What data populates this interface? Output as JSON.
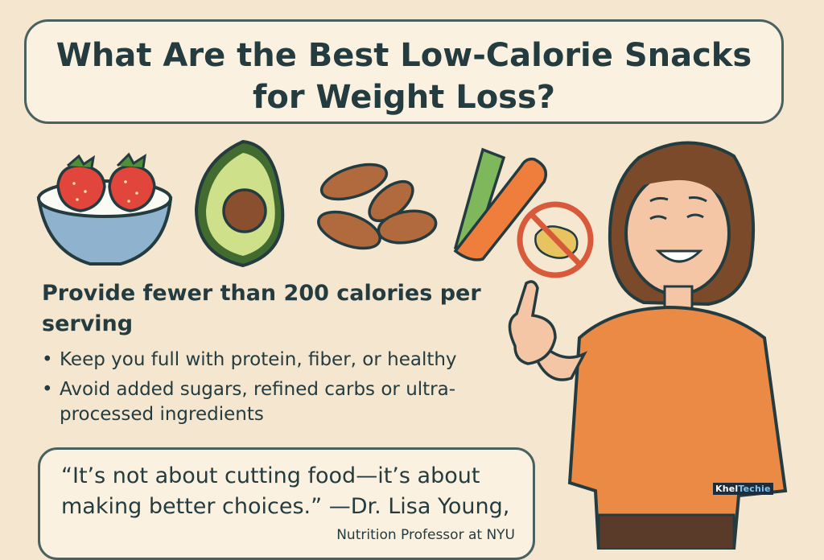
{
  "title": "What Are the Best Low-Calorie Snacks for Weight Loss?",
  "headline": "Provide fewer than 200 calories per serving",
  "bullets": [
    {
      "marker": "•",
      "text": "Keep you full with protein, fiber, or healthy"
    },
    {
      "marker": "•",
      "text": "Avoid added sugars, refined carbs or ultra-processed ingredients"
    }
  ],
  "quote": {
    "text": "“It’s not about cutting food—it’s about making better choices.” —Dr. Lisa Young,",
    "attribution": "Nutrition Professor at NYU"
  },
  "watermark": {
    "main": "Khel",
    "accent": "Techie"
  },
  "icons": [
    "strawberry-yogurt-bowl-icon",
    "avocado-icon",
    "almonds-icon",
    "celery-carrot-sticks-icon",
    "no-chips-icon",
    "woman-pointing-illustration"
  ],
  "colors": {
    "background": "#f4e6cf",
    "border": "#49625f",
    "text": "#243c3f",
    "shirt": "#ea8a45",
    "no-sign": "#d95a3a"
  }
}
